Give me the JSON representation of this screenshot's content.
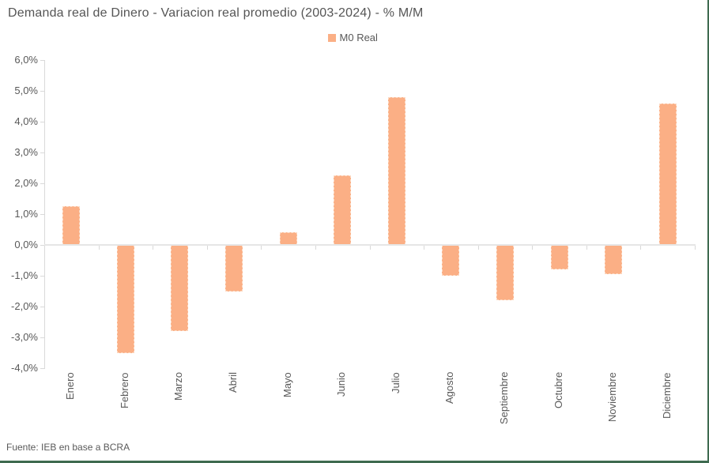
{
  "window": {
    "background": "#ffffff",
    "frame_border_color": "#3e6a4f"
  },
  "header": {
    "title": "Demanda real de Dinero - Variacion real promedio (2003-2024) - % M/M"
  },
  "legend": {
    "label": "M0 Real",
    "swatch_color": "#FBAF85"
  },
  "footer": {
    "source": "Fuente: IEB en base a BCRA"
  },
  "chart_data": {
    "type": "bar",
    "title": "Demanda real de Dinero - Variacion real promedio (2003-2024) - % M/M",
    "series_name": "M0 Real",
    "categories": [
      "Enero",
      "Febrero",
      "Marzo",
      "Abril",
      "Mayo",
      "Junio",
      "Julio",
      "Agosto",
      "Septiembre",
      "Octubre",
      "Noviembre",
      "Diciembre"
    ],
    "values": [
      1.25,
      -3.5,
      -2.8,
      -1.5,
      0.4,
      2.25,
      4.8,
      -1.0,
      -1.8,
      -0.8,
      -0.95,
      4.6
    ],
    "unit": "% M/M",
    "ylim": [
      -4.0,
      6.0
    ],
    "ytick_step": 1.0,
    "ytick_values": [
      6,
      5,
      4,
      3,
      2,
      1,
      0,
      -1,
      -2,
      -3,
      -4
    ],
    "ytick_labels": [
      "6,0%",
      "5,0%",
      "4,0%",
      "3,0%",
      "2,0%",
      "1,0%",
      "0,0%",
      "-1,0%",
      "-2,0%",
      "-3,0%",
      "-4,0%"
    ],
    "xlabel_rotation": -90,
    "grid": false,
    "legend_position": "top-center",
    "bar_color": "#FBAF85",
    "axis_color": "#D9D9D9",
    "text_color": "#595959"
  }
}
